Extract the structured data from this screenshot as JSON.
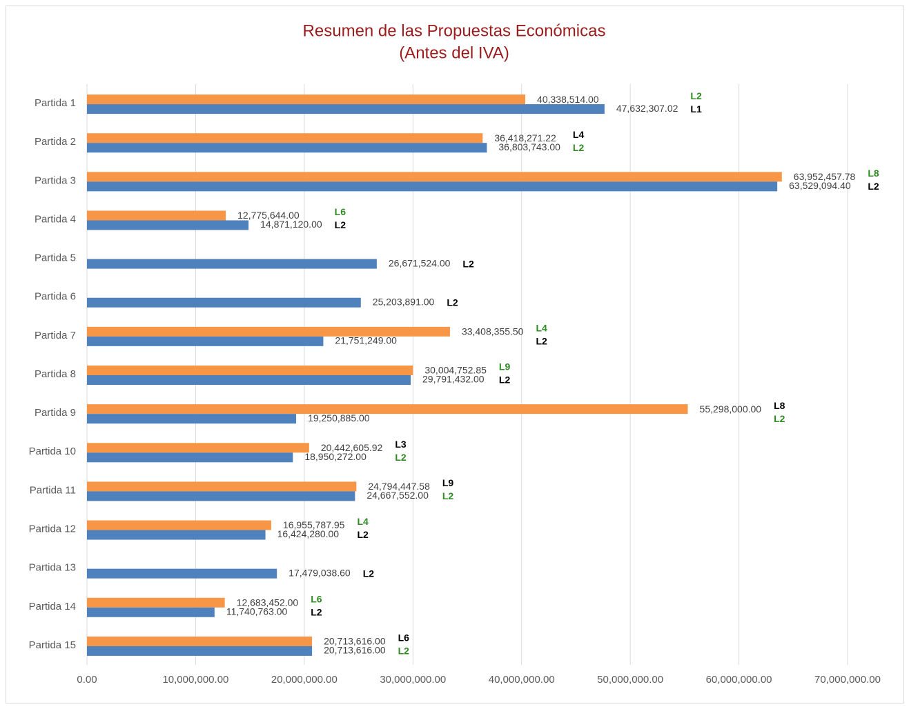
{
  "chart_data": {
    "type": "barh",
    "title": "Resumen de las Propuestas Económicas",
    "subtitle": "(Antes del IVA)",
    "categories": [
      "Partida 1",
      "Partida 2",
      "Partida 3",
      "Partida 4",
      "Partida 5",
      "Partida 6",
      "Partida 7",
      "Partida 8",
      "Partida 9",
      "Partida 10",
      "Partida 11",
      "Partida 12",
      "Partida 13",
      "Partida 14",
      "Partida 15"
    ],
    "series": [
      {
        "color": "#f79646",
        "values": [
          40338514.0,
          36418271.22,
          63952457.78,
          12775644.0,
          null,
          null,
          33408355.5,
          30004752.85,
          55298000.0,
          20442605.92,
          24794447.58,
          16955787.95,
          null,
          12683452.0,
          20713616.0
        ],
        "value_labels": [
          "40,338,514.00",
          "36,418,271.22",
          "63,952,457.78",
          "12,775,644.00",
          null,
          null,
          "33,408,355.50",
          "30,004,752.85",
          "55,298,000.00",
          "20,442,605.92",
          "24,794,447.58",
          "16,955,787.95",
          null,
          "12,683,452.00",
          "20,713,616.00"
        ],
        "tags": [
          "L2",
          "L4",
          "L8",
          "L6",
          null,
          null,
          "L4",
          "L9",
          "L8",
          "L3",
          "L9",
          "L4",
          null,
          "L6",
          "L6"
        ],
        "tag_colors": [
          "#2e8b22",
          "#000000",
          "#2e8b22",
          "#2e8b22",
          null,
          null,
          "#2e8b22",
          "#2e8b22",
          "#000000",
          "#000000",
          "#000000",
          "#2e8b22",
          null,
          "#2e8b22",
          "#000000"
        ]
      },
      {
        "color": "#4f81bd",
        "values": [
          47632307.02,
          36803743.0,
          63529094.4,
          14871120.0,
          26671524.0,
          25203891.0,
          21751249.0,
          29791432.0,
          19250885.0,
          18950272.0,
          24667552.0,
          16424280.0,
          17479038.6,
          11740763.0,
          20713616.0
        ],
        "value_labels": [
          "47,632,307.02",
          "36,803,743.00",
          "63,529,094.40",
          "14,871,120.00",
          "26,671,524.00",
          "25,203,891.00",
          "21,751,249.00",
          "29,791,432.00",
          "19,250,885.00",
          "18,950,272.00",
          "24,667,552.00",
          "16,424,280.00",
          "17,479,038.60",
          "11,740,763.00",
          "20,713,616.00"
        ],
        "tags": [
          "L1",
          "L2",
          "L2",
          "L2",
          "L2",
          "L2",
          "L2",
          "L2",
          "L2",
          "L2",
          "L2",
          "L2",
          "L2",
          "L2",
          "L2"
        ],
        "tag_colors": [
          "#000000",
          "#2e8b22",
          "#000000",
          "#000000",
          "#000000",
          "#000000",
          "#000000",
          "#000000",
          "#2e8b22",
          "#2e8b22",
          "#2e8b22",
          "#000000",
          "#000000",
          "#000000",
          "#2e8b22"
        ]
      }
    ],
    "xlim": [
      0,
      70000000
    ],
    "xticks": [
      {
        "value": 0,
        "label": "0.00"
      },
      {
        "value": 10000000,
        "label": "10,000,000.00"
      },
      {
        "value": 20000000,
        "label": "20,000,000.00"
      },
      {
        "value": 30000000,
        "label": "30,000,000.00"
      },
      {
        "value": 40000000,
        "label": "40,000,000.00"
      },
      {
        "value": 50000000,
        "label": "50,000,000.00"
      },
      {
        "value": 60000000,
        "label": "60,000,000.00"
      },
      {
        "value": 70000000,
        "label": "70,000,000.00"
      }
    ],
    "grid": true
  }
}
